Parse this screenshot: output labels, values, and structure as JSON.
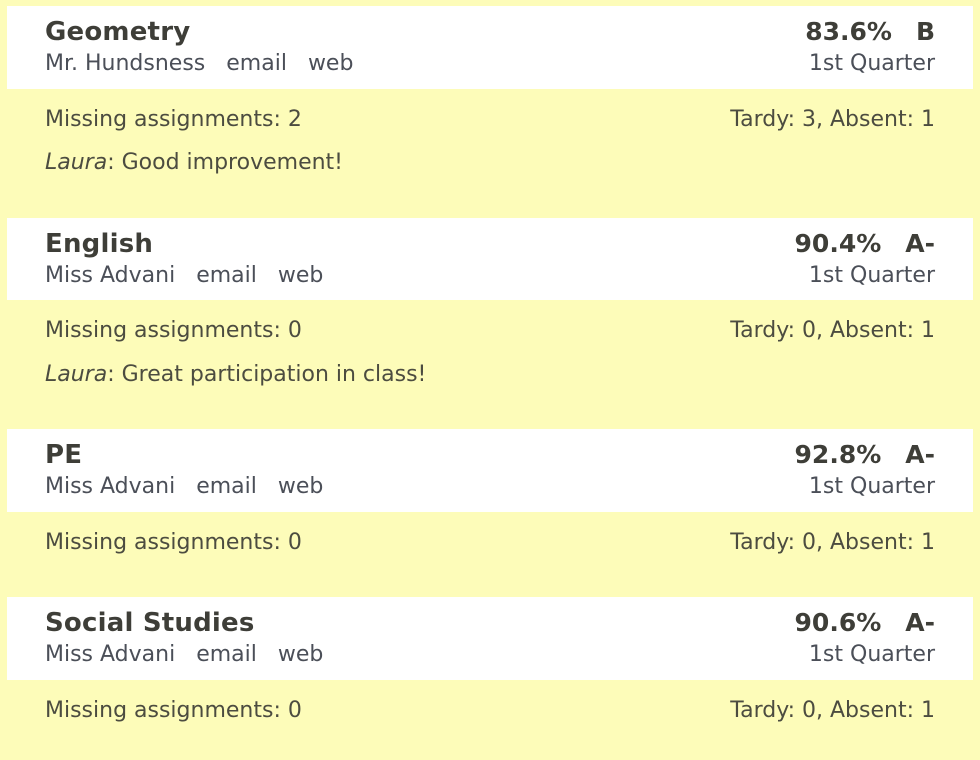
{
  "page": {
    "background_color": "#FDFCB9",
    "header_background_color": "#FFFFFF",
    "text_color_dark": "#3E3E38",
    "text_color_slate": "#4B4F58",
    "text_color_body": "#4C4C40"
  },
  "courses": [
    {
      "name": "Geometry",
      "teacher": "Mr. Hundsness",
      "email_label": "email",
      "web_label": "web",
      "grade_percent": "83.6%",
      "grade_letter": "B",
      "term": "1st Quarter",
      "missing": "Missing assignments: 2",
      "attendance": "Tardy: 3, Absent: 1",
      "note_author": "Laura",
      "note_text": ": Good improvement!"
    },
    {
      "name": "English",
      "teacher": "Miss Advani",
      "email_label": "email",
      "web_label": "web",
      "grade_percent": "90.4%",
      "grade_letter": "A-",
      "term": "1st Quarter",
      "missing": "Missing assignments: 0",
      "attendance": "Tardy: 0, Absent: 1",
      "note_author": "Laura",
      "note_text": ": Great participation in class!"
    },
    {
      "name": "PE",
      "teacher": "Miss Advani",
      "email_label": "email",
      "web_label": "web",
      "grade_percent": "92.8%",
      "grade_letter": "A-",
      "term": "1st Quarter",
      "missing": "Missing assignments: 0",
      "attendance": "Tardy: 0, Absent: 1"
    },
    {
      "name": "Social Studies",
      "teacher": "Miss Advani",
      "email_label": "email",
      "web_label": "web",
      "grade_percent": "90.6%",
      "grade_letter": "A-",
      "term": "1st Quarter",
      "missing": "Missing assignments: 0",
      "attendance": "Tardy: 0, Absent: 1"
    }
  ]
}
